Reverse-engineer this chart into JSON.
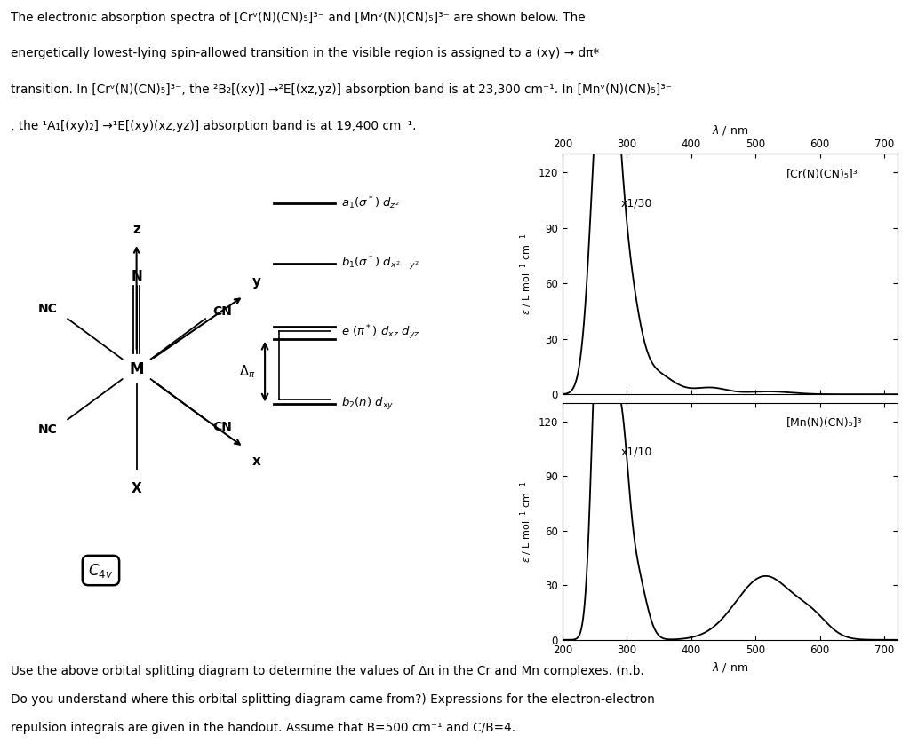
{
  "xlim": [
    200,
    720
  ],
  "xticks": [
    200,
    300,
    400,
    500,
    600,
    700
  ],
  "ylim": [
    0,
    130
  ],
  "yticks": [
    0,
    30,
    60,
    90,
    120
  ],
  "cr_label": "[Cr(N)(CN)₅]³",
  "mn_label": "[Mn(N)(CN)₅]³",
  "cr_annotation": "x1/30",
  "mn_annotation": "x1/10",
  "background_color": "#ffffff",
  "line_color": "#000000",
  "text_color": "#000000",
  "top_text_line1": "The electronic absorption spectra of [Crᵛ(N)(CN)₅]³⁻ and [Mnᵛ(N)(CN)₅]³⁻ are shown below. The",
  "top_text_line2": "energetically lowest-lying spin-allowed transition in the visible region is assigned to a (xy) → dπ*",
  "top_text_line3": "transition. In [Crᵛ(N)(CN)₅]³⁻, the ²B₂[(xy)] →²E[(xz,yz)] absorption band is at 23,300 cm⁻¹. In [Mnᵛ(N)(CN)₅]³⁻",
  "top_text_line4": ", the ¹A₁[(xy)₂] →¹E[(xy)(xz,yz)] absorption band is at 19,400 cm⁻¹.",
  "bottom_text_line1": "Use the above orbital splitting diagram to determine the values of Δπ in the Cr and Mn complexes. (n.b.",
  "bottom_text_line2": "Do you understand where this orbital splitting diagram came from?) Expressions for the electron-electron",
  "bottom_text_line3": "repulsion integrals are given in the handout. Assume that B=500 cm⁻¹ and C/B=4."
}
